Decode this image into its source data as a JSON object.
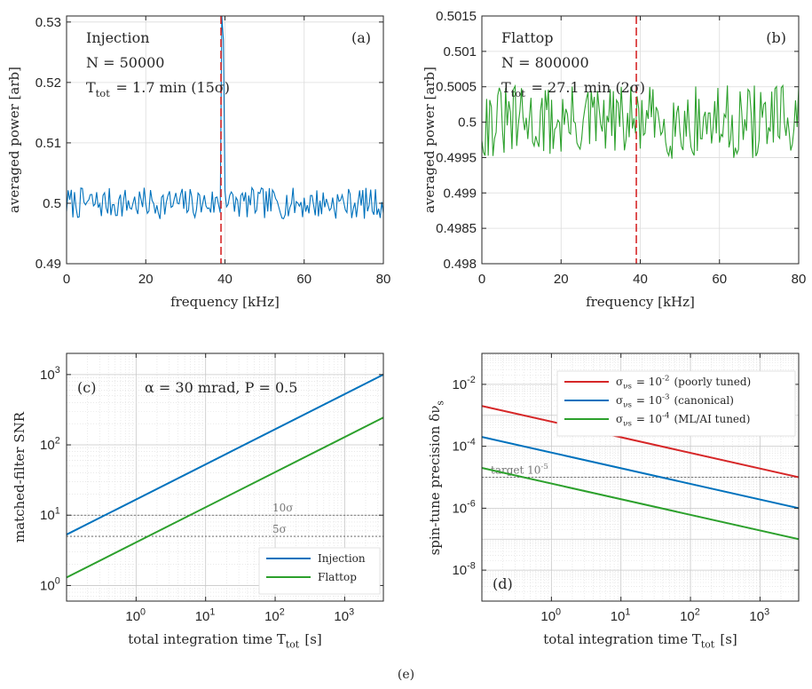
{
  "chart_data": [
    {
      "id": "a",
      "type": "line",
      "panel_label": "(a)",
      "annotation_lines": [
        "Injection",
        "N = 50000",
        "T_tot = 1.7 min (15σ)"
      ],
      "xlabel": "frequency [kHz]",
      "ylabel": "averaged power [arb]",
      "xlim": [
        0,
        80
      ],
      "ylim": [
        0.49,
        0.531
      ],
      "xticks": [
        0,
        20,
        40,
        60,
        80
      ],
      "xtick_labels": [
        "0",
        "20",
        "40",
        "60",
        "80"
      ],
      "yticks": [
        0.49,
        0.5,
        0.51,
        0.52,
        0.53
      ],
      "ytick_labels": [
        "0.49",
        "0.5",
        "0.51",
        "0.52",
        "0.53"
      ],
      "grid": true,
      "series_color": "#0072BD",
      "marker_color": "#D62728",
      "marker_x": 39,
      "peak_x": 39.2,
      "peak_y": 0.531,
      "noise": {
        "n": 200,
        "mean": 0.5,
        "amp": 0.0026,
        "seed": 7
      }
    },
    {
      "id": "b",
      "type": "line",
      "panel_label": "(b)",
      "annotation_lines": [
        "Flattop",
        "N = 800000",
        "T_tot = 27.1 min (2σ)"
      ],
      "xlabel": "frequency [kHz]",
      "ylabel": "averaged power [arb]",
      "xlim": [
        0,
        80
      ],
      "ylim": [
        0.498,
        0.5015
      ],
      "xticks": [
        0,
        20,
        40,
        60,
        80
      ],
      "xtick_labels": [
        "0",
        "20",
        "40",
        "60",
        "80"
      ],
      "yticks": [
        0.498,
        0.4985,
        0.499,
        0.4995,
        0.5,
        0.5005,
        0.501,
        0.5015
      ],
      "ytick_labels": [
        "0.498",
        "0.4985",
        "0.499",
        "0.4995",
        "0.5",
        "0.5005",
        "0.501",
        "0.5015"
      ],
      "grid": true,
      "series_color": "#2CA02C",
      "marker_color": "#D62728",
      "marker_x": 39,
      "noise": {
        "n": 200,
        "mean": 0.5,
        "amp": 0.00052,
        "seed": 31
      }
    },
    {
      "id": "c",
      "type": "line",
      "panel_label": "(c)",
      "annotation_lines": [
        "α = 30 mrad, P = 0.5"
      ],
      "xlabel": "total integration time T_tot [s]",
      "ylabel": "matched-filter SNR",
      "xscale": "log",
      "yscale": "log",
      "xlim": [
        0.1,
        3600
      ],
      "ylim": [
        0.6,
        2000
      ],
      "xticks": [
        1,
        10,
        100,
        1000
      ],
      "xtick_labels": [
        "10^0",
        "10^1",
        "10^2",
        "10^3"
      ],
      "yticks": [
        1,
        10,
        100,
        1000
      ],
      "ytick_labels": [
        "10^0",
        "10^1",
        "10^2",
        "10^3"
      ],
      "grid": true,
      "legend_position": "bottom-right",
      "hlines": [
        {
          "y": 10,
          "label": "10σ"
        },
        {
          "y": 5,
          "label": "5σ"
        }
      ],
      "series": [
        {
          "name": "Injection",
          "color": "#0072BD",
          "x": [
            0.1,
            3600
          ],
          "y": [
            5.3,
            1000
          ]
        },
        {
          "name": "Flattop",
          "color": "#2CA02C",
          "x": [
            0.1,
            3600
          ],
          "y": [
            1.3,
            245
          ]
        }
      ]
    },
    {
      "id": "d",
      "type": "line",
      "panel_label": "(d)",
      "xlabel": "total integration time T_tot [s]",
      "ylabel": "spin-tune precision δν_s",
      "xscale": "log",
      "yscale": "log",
      "xlim": [
        0.1,
        3600
      ],
      "ylim": [
        1e-09,
        0.1
      ],
      "xticks": [
        1,
        10,
        100,
        1000
      ],
      "xtick_labels": [
        "10^0",
        "10^1",
        "10^2",
        "10^3"
      ],
      "yticks": [
        1e-08,
        1e-06,
        0.0001,
        0.01
      ],
      "ytick_labels": [
        "10^-8",
        "10^-6",
        "10^-4",
        "10^-2"
      ],
      "grid": true,
      "legend_position": "top-right",
      "hlines": [
        {
          "y": 1e-05,
          "label": "target 10^-5"
        }
      ],
      "series": [
        {
          "name": "σ_νs = 10^-2 (poorly tuned)",
          "color": "#D62728",
          "x": [
            0.1,
            3600
          ],
          "y": [
            0.002,
            1e-05
          ]
        },
        {
          "name": "σ_νs = 10^-3 (canonical)",
          "color": "#0072BD",
          "x": [
            0.1,
            3600
          ],
          "y": [
            0.0002,
            1e-06
          ]
        },
        {
          "name": "σ_νs = 10^-4 (ML/AI tuned)",
          "color": "#2CA02C",
          "x": [
            0.1,
            3600
          ],
          "y": [
            2e-05,
            1e-07
          ]
        }
      ]
    }
  ],
  "caption": "(e)"
}
